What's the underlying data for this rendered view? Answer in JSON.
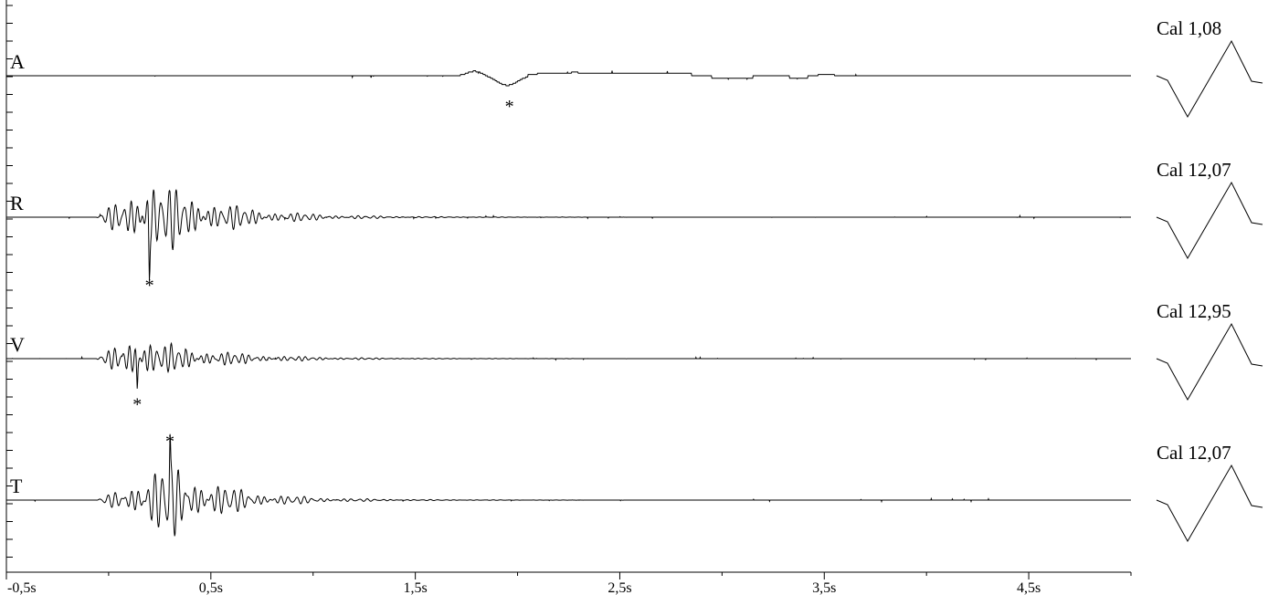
{
  "chart_data": {
    "type": "line",
    "x_unit": "s",
    "xlim": [
      -0.5,
      5.0
    ],
    "x_tick_labels": [
      "-0,5s",
      "0,5s",
      "1,5s",
      "2,5s",
      "3,5s",
      "4,5s"
    ],
    "x_tick_values": [
      -0.5,
      0.5,
      1.5,
      2.5,
      3.5,
      4.5
    ],
    "marker_symbol": "*",
    "series": [
      {
        "name": "A",
        "calibration": "Cal 1,08",
        "marker_time": 1.96,
        "wave": "smooth",
        "events": [
          {
            "t": 1.79,
            "a": 0.09,
            "w": 0.05
          },
          {
            "t": 1.95,
            "a": -0.19,
            "w": 0.07
          },
          {
            "t": 2.28,
            "a": 0.03,
            "w": 0.03
          }
        ],
        "plateaus": [
          {
            "start": 2.05,
            "end": 2.85,
            "a": 0.04
          },
          {
            "start": 2.95,
            "end": 3.15,
            "a": -0.04
          },
          {
            "start": 3.33,
            "end": 3.42,
            "a": -0.04
          },
          {
            "start": 3.47,
            "end": 3.55,
            "a": 0.02
          }
        ]
      },
      {
        "name": "R",
        "calibration": "Cal 12,07",
        "marker_time": 0.2,
        "wave": "oscillation",
        "burst_start": -0.06,
        "peak_time": 0.19,
        "burst_amp": 0.68,
        "freq": 27,
        "decay": 0.42,
        "spike": -1.0
      },
      {
        "name": "V",
        "calibration": "Cal 12,95",
        "marker_time": 0.14,
        "wave": "oscillation",
        "burst_start": -0.06,
        "peak_time": 0.12,
        "burst_amp": 0.44,
        "freq": 29,
        "decay": 0.34,
        "spike": -0.55
      },
      {
        "name": "T",
        "calibration": "Cal 12,07",
        "marker_time": 0.3,
        "wave": "oscillation",
        "burst_start": -0.06,
        "peak_time": 0.29,
        "burst_amp": 0.6,
        "freq": 26,
        "decay": 0.36,
        "spike": 0.95
      }
    ]
  }
}
